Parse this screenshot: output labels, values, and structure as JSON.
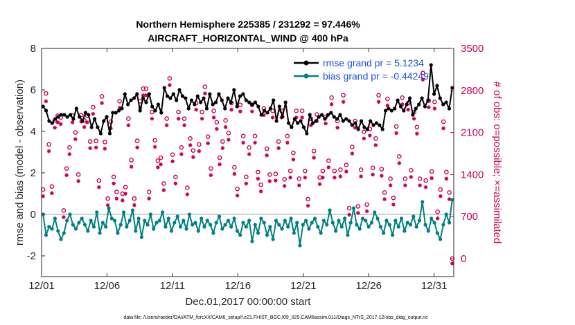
{
  "chart_data": {
    "type": "line",
    "title": "Northern Hemisphere 225385 / 231292 = 97.446%",
    "subtitle": "AIRCRAFT_HORIZONTAL_WIND @ 400 hPa",
    "xlabel": "Dec.01,2017 00:00:00 start",
    "ylabel": "rmse and bias (model - observation)",
    "y2label": "# of obs: o=possible; ×=assimilated",
    "footer": "data file: /Users/raeder/DAI/ATM_forcXX/CAM6_setup/f.e21.FHIST_BGC.f09_025.CAM6assim.011/Diags_NTrS_2017-12/obs_diag_output.nc",
    "xlim": [
      0,
      31.5
    ],
    "ylim": [
      -3,
      8
    ],
    "y2lim": [
      -300,
      3500
    ],
    "x_tick_labels": [
      "12/01",
      "12/06",
      "12/11",
      "12/16",
      "12/21",
      "12/26",
      "12/31"
    ],
    "x_tick_values": [
      0,
      5,
      10,
      15,
      20,
      25,
      30
    ],
    "y_ticks": [
      -2,
      0,
      2,
      4,
      6,
      8
    ],
    "y2_ticks": [
      0,
      700,
      1400,
      2100,
      2800,
      3500
    ],
    "colors": {
      "rmse": "#000000",
      "bias": "#008080",
      "obs": "#cc0055",
      "legend_text": "#1a4fd6",
      "zero_line": "#bfbfbf"
    },
    "series": [
      {
        "name": "rmse",
        "legend": "rmse grand pr = 5.1234",
        "values": [
          5.2,
          5.0,
          4.5,
          4.4,
          4.6,
          4.7,
          4.8,
          4.8,
          4.7,
          4.8,
          4.6,
          5.1,
          4.7,
          4.5,
          4.9,
          4.8,
          4.2,
          4.6,
          4.2,
          3.9,
          4.5,
          4.7,
          3.9,
          4.9,
          4.9,
          5.0,
          5.1,
          5.8,
          5.3,
          5.5,
          5.6,
          5.8,
          5.0,
          5.6,
          5.4,
          5.8,
          5.2,
          5.0,
          5.3,
          4.9,
          6.1,
          5.7,
          5.6,
          5.8,
          5.5,
          6.0,
          5.7,
          5.6,
          5.1,
          5.5,
          5.3,
          5.7,
          5.4,
          5.6,
          5.1,
          5.8,
          5.3,
          5.4,
          5.8,
          5.5,
          5.1,
          5.6,
          5.4,
          6.0,
          5.2,
          5.7,
          5.8,
          5.5,
          5.4,
          5.3,
          5.4,
          5.2,
          4.8,
          5.0,
          4.9,
          5.1,
          5.5,
          4.5,
          5.2,
          4.7,
          5.4,
          4.4,
          4.2,
          4.6,
          4.4,
          4.5,
          4.2,
          3.9,
          4.8,
          4.4,
          4.5,
          4.7,
          4.8,
          4.6,
          4.8,
          4.9,
          4.7,
          4.6,
          4.8,
          4.5,
          4.6,
          4.5,
          4.3,
          4.4,
          4.1,
          4.5,
          4.2,
          4.1,
          4.5,
          4.3,
          4.4,
          4.3,
          4.1,
          5.0,
          5.1,
          5.0,
          5.1,
          5.5,
          5.2,
          5.0,
          5.3,
          5.6,
          4.8,
          5.1,
          5.3,
          5.6,
          5.2,
          5.5,
          7.2,
          5.8,
          6.2,
          5.6,
          5.3,
          5.4,
          5.1,
          6.1
        ]
      },
      {
        "name": "bias",
        "legend": "bias grand pr = -0.44249",
        "values": [
          0.0,
          -1.0,
          -0.6,
          -0.7,
          -0.2,
          -0.8,
          -1.2,
          -0.9,
          -0.3,
          0.0,
          -0.5,
          -0.7,
          -0.4,
          -0.2,
          -0.5,
          -0.8,
          -0.3,
          -0.6,
          0.1,
          -0.9,
          -0.4,
          -0.6,
          0.3,
          -0.2,
          -0.3,
          -0.9,
          -0.5,
          0.1,
          -0.6,
          -0.3,
          0.2,
          -0.8,
          -0.2,
          -1.1,
          -0.3,
          -0.5,
          0.0,
          -0.7,
          -0.4,
          -0.3,
          0.1,
          -0.6,
          -0.2,
          -0.8,
          -0.4,
          -0.1,
          -0.6,
          -0.3,
          -0.7,
          0.0,
          -0.5,
          -0.4,
          -0.8,
          -0.2,
          -0.6,
          -0.3,
          -0.5,
          -0.9,
          -0.4,
          -0.1,
          -0.7,
          -0.5,
          -0.3,
          -0.6,
          -0.2,
          -0.8,
          -1.0,
          -0.4,
          -0.6,
          -0.3,
          -1.3,
          -0.5,
          -0.9,
          -0.2,
          -0.4,
          -1.0,
          -0.6,
          -1.2,
          -0.3,
          -0.5,
          -0.7,
          -0.3,
          -0.6,
          -0.2,
          -0.9,
          -0.4,
          -1.5,
          -0.5,
          -0.3,
          -0.7,
          -0.4,
          -0.2,
          -0.6,
          -0.9,
          -0.3,
          -0.5,
          0.2,
          -0.4,
          -0.8,
          -0.3,
          -0.6,
          -0.2,
          -1.0,
          -0.4,
          0.3,
          -0.5,
          -0.7,
          -0.2,
          -0.3,
          -0.6,
          -0.4,
          0.1,
          -0.2,
          -0.6,
          -0.9,
          -0.3,
          -0.5,
          -1.0,
          -0.3,
          -0.6,
          -0.2,
          -0.8,
          -0.4,
          -0.5,
          -0.1,
          -0.6,
          -0.3,
          0.6,
          -0.5,
          -0.8,
          -0.2,
          -0.4,
          -0.9,
          -1.2,
          -0.5,
          0.0,
          -0.4,
          0.7
        ]
      }
    ],
    "obs_possible": [
      1150,
      2750,
      1900,
      1200,
      2300,
      2380,
      2350,
      800,
      1500,
      1850,
      2380,
      2100,
      1400,
      2390,
      2300,
      2380,
      1950,
      2520,
      1960,
      1300,
      2700,
      1940,
      1000,
      2280,
      1360,
      1110,
      2620,
      1080,
      1190,
      2330,
      1640,
      1000,
      1960,
      2620,
      2830,
      2830,
      1110,
      2440,
      1970,
      1630,
      1680,
      1250,
      2330,
      3000,
      1730,
      1360,
      2440,
      1850,
      2330,
      1180,
      2000,
      1800,
      2590,
      1900,
      2440,
      2860,
      2030,
      1500,
      2460,
      2270,
      1680,
      1950,
      2300,
      2090,
      2590,
      1520,
      1160,
      2560,
      2040,
      1360,
      1850,
      2560,
      2040,
      1440,
      1230,
      2500,
      1830,
      1400,
      2460,
      1410,
      1950,
      2460,
      1320,
      2040,
      1460,
      1760,
      2460,
      1330,
      2460,
      1460,
      990,
      2330,
      1790,
      2400,
      1350,
      1460,
      2360,
      1630,
      2680,
      1460,
      2290,
      1480,
      2720,
      1560,
      840,
      1860,
      2290,
      870,
      1480,
      2110,
      900,
      2160,
      1510,
      2000,
      2720,
      1490,
      1100,
      2660,
      1330,
      1010,
      2200,
      1700,
      2680,
      1330,
      2590,
      1470,
      2440,
      2190,
      1330,
      3090,
      1300,
      2630,
      1450,
      2610,
      780,
      1150,
      2280,
      1440,
      1100,
      0
    ],
    "obs_assimilated": [
      1120,
      2700,
      1870,
      1170,
      2260,
      2350,
      2320,
      770,
      1470,
      1820,
      2350,
      2070,
      1370,
      2360,
      2270,
      2350,
      1920,
      2490,
      1930,
      1270,
      2670,
      1910,
      970,
      2250,
      1330,
      1080,
      2590,
      1050,
      1160,
      2300,
      1610,
      970,
      1930,
      2590,
      2800,
      2800,
      1080,
      2410,
      1940,
      1600,
      1650,
      1220,
      2300,
      2970,
      1700,
      1330,
      2410,
      1820,
      2300,
      1150,
      1970,
      1770,
      2560,
      1870,
      2410,
      2830,
      2000,
      1470,
      2430,
      2240,
      1650,
      1920,
      2270,
      2060,
      2560,
      1490,
      1130,
      2530,
      2010,
      1330,
      1820,
      2530,
      2010,
      1410,
      1200,
      2470,
      1800,
      1370,
      2430,
      1380,
      1920,
      2430,
      1290,
      2010,
      1430,
      1730,
      2430,
      1300,
      2430,
      1430,
      960,
      2300,
      1760,
      2370,
      1320,
      1430,
      2330,
      1600,
      2650,
      1430,
      2260,
      1450,
      2690,
      1530,
      810,
      1830,
      2260,
      840,
      1450,
      2080,
      870,
      2130,
      1480,
      1970,
      2690,
      1460,
      1070,
      2630,
      1300,
      980,
      2170,
      1670,
      2650,
      1300,
      2560,
      1440,
      2410,
      2160,
      1300,
      3060,
      1270,
      2600,
      1420,
      2580,
      750,
      1120,
      2250,
      1410,
      1070,
      0
    ]
  }
}
